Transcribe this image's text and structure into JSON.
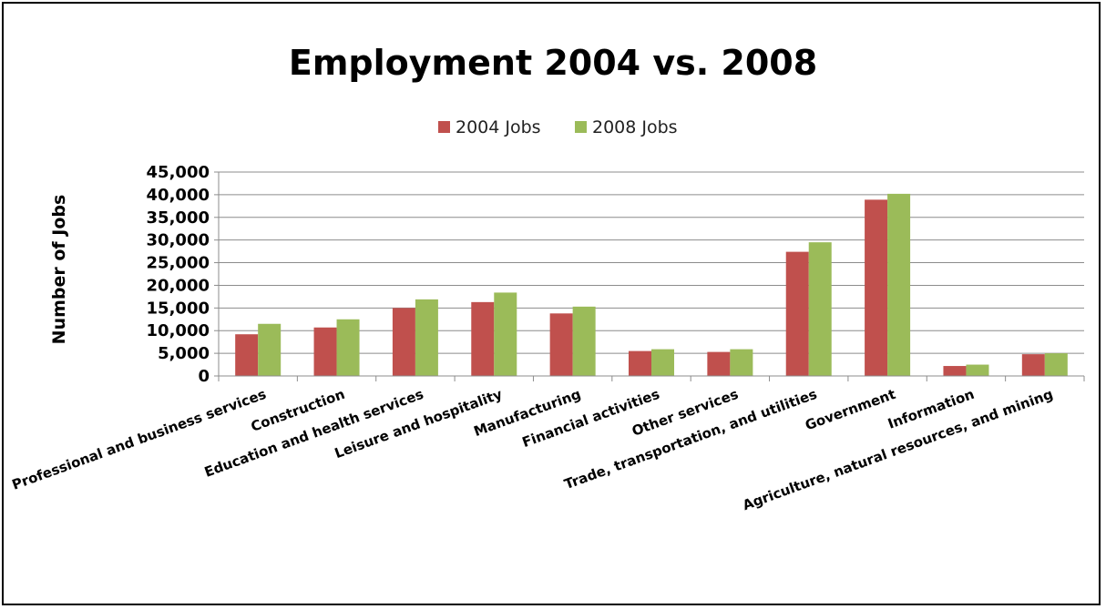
{
  "chart_data": {
    "type": "bar",
    "title": "Employment 2004 vs. 2008",
    "xlabel": "",
    "ylabel": "Number of Jobs",
    "ylim": [
      0,
      45000
    ],
    "yticks": [
      "0",
      "5,000",
      "10,000",
      "15,000",
      "20,000",
      "25,000",
      "30,000",
      "35,000",
      "40,000",
      "45,000"
    ],
    "ytick_values": [
      0,
      5000,
      10000,
      15000,
      20000,
      25000,
      30000,
      35000,
      40000,
      45000
    ],
    "grid": true,
    "legend_position": "top-center",
    "categories": [
      "Professional and business services",
      "Construction",
      "Education and health services",
      "Leisure and hospitality",
      "Manufacturing",
      "Financial activities",
      "Other services",
      "Trade, transportation, and utilities",
      "Government",
      "Information",
      "Agriculture, natural resources, and mining"
    ],
    "series": [
      {
        "name": "2004 Jobs",
        "color": "#C0504D",
        "values": [
          9200,
          10700,
          15000,
          16300,
          13800,
          5500,
          5300,
          27400,
          38900,
          2200,
          4800
        ]
      },
      {
        "name": "2008 Jobs",
        "color": "#9BBB59",
        "values": [
          11500,
          12500,
          16900,
          18400,
          15300,
          5900,
          5900,
          29500,
          40200,
          2500,
          5000
        ]
      }
    ]
  }
}
